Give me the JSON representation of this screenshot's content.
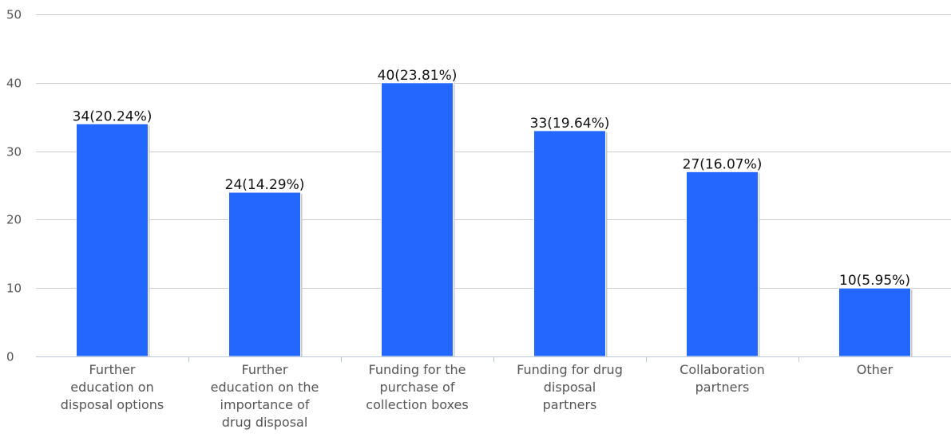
{
  "chart_data": {
    "type": "bar",
    "categories": [
      [
        "Further",
        "education on",
        "disposal options"
      ],
      [
        "Further",
        "education on the",
        "importance of",
        "drug disposal"
      ],
      [
        "Funding for the",
        "purchase of",
        "collection boxes"
      ],
      [
        "Funding for drug",
        "disposal",
        "partners"
      ],
      [
        "Collaboration",
        "partners"
      ],
      [
        "Other"
      ]
    ],
    "values": [
      34,
      24,
      40,
      33,
      27,
      10
    ],
    "data_labels": [
      "34(20.24%)",
      "24(14.29%)",
      "40(23.81%)",
      "33(19.64%)",
      "27(16.07%)",
      "10(5.95%)"
    ],
    "yticks": [
      0,
      10,
      20,
      30,
      40,
      50
    ],
    "ylim": [
      0,
      50
    ],
    "grid": true,
    "legend": "none",
    "colors": {
      "bar": "#2467ff",
      "grid": "#cccccc",
      "axis": "#b8c8d8"
    }
  }
}
